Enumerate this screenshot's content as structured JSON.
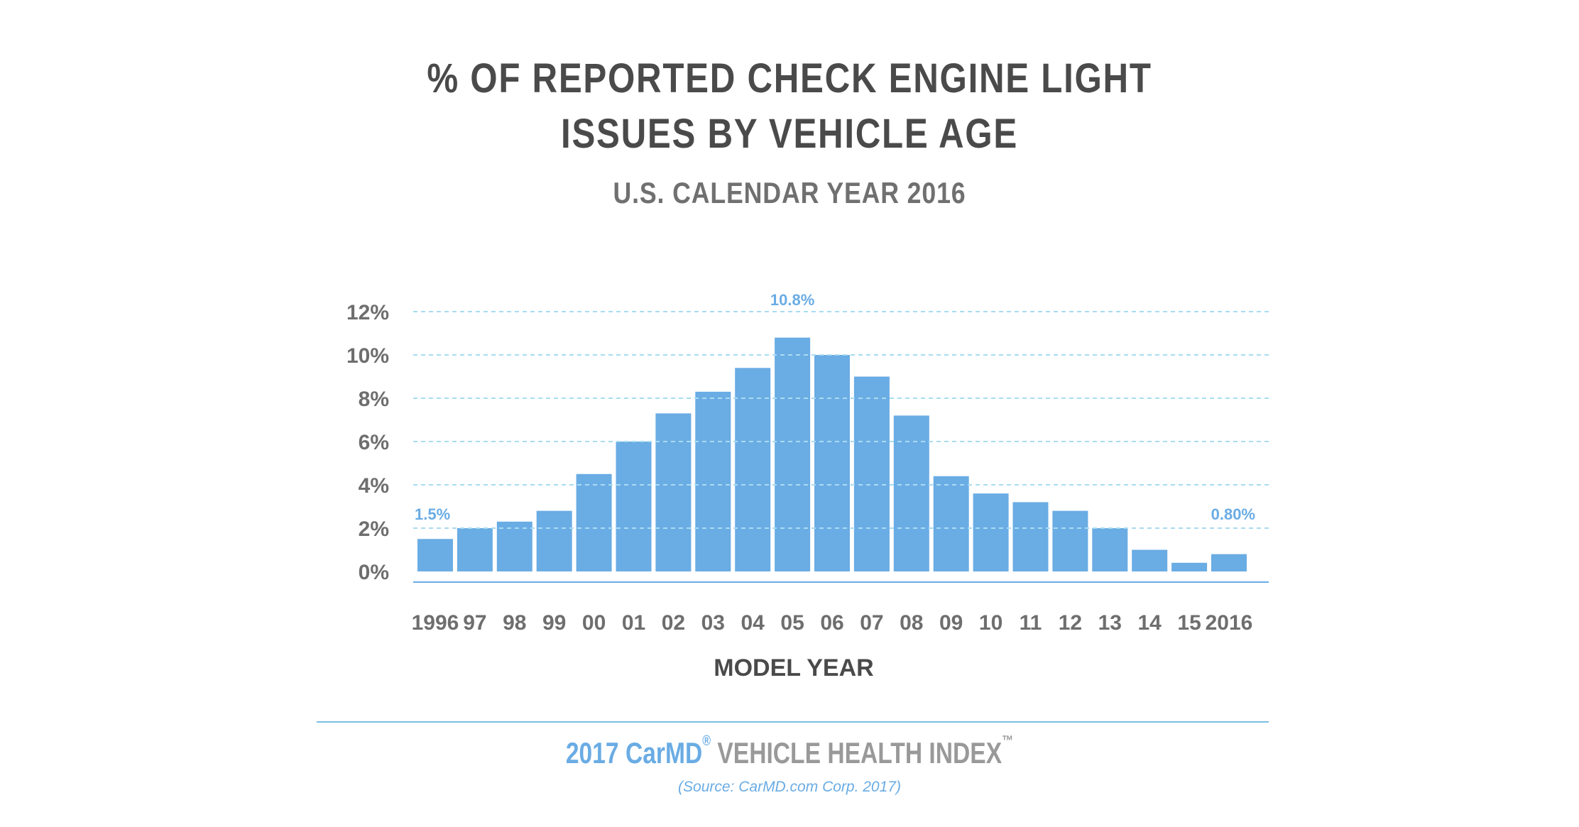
{
  "chart_data": {
    "type": "bar",
    "title": [
      "% OF REPORTED CHECK ENGINE LIGHT",
      "ISSUES BY VEHICLE AGE"
    ],
    "subtitle": "U.S. CALENDAR YEAR 2016",
    "xlabel": "MODEL YEAR",
    "ylabel": "",
    "categories": [
      "1996",
      "97",
      "98",
      "99",
      "00",
      "01",
      "02",
      "03",
      "04",
      "05",
      "06",
      "07",
      "08",
      "09",
      "10",
      "11",
      "12",
      "13",
      "14",
      "15",
      "2016"
    ],
    "values": [
      1.5,
      2.0,
      2.3,
      2.8,
      4.5,
      6.0,
      7.3,
      8.3,
      9.4,
      10.8,
      10.0,
      9.0,
      7.2,
      4.4,
      3.6,
      3.2,
      2.8,
      2.0,
      1.0,
      0.4,
      0.8
    ],
    "ylim": [
      0,
      12
    ],
    "yticks": [
      0,
      2,
      4,
      6,
      8,
      10,
      12
    ],
    "ytick_labels": [
      "0%",
      "2%",
      "4%",
      "6%",
      "8%",
      "10%",
      "12%"
    ],
    "grid": true,
    "annotations": [
      {
        "category": "1996",
        "text": "1.5%"
      },
      {
        "category": "05",
        "text": "10.8%"
      },
      {
        "category": "2016",
        "text": "0.80%"
      }
    ],
    "colors": {
      "bar": "#6aace4",
      "grid": "#a8dcf0",
      "axis": "#6aace4",
      "label": "#6e6e6e",
      "annotation": "#6aace4"
    }
  },
  "footer": {
    "brand": "2017 CarMD",
    "registered": "®",
    "index": "VEHICLE HEALTH INDEX",
    "trademark": "™",
    "source": "(Source: CarMD.com Corp. 2017)"
  }
}
